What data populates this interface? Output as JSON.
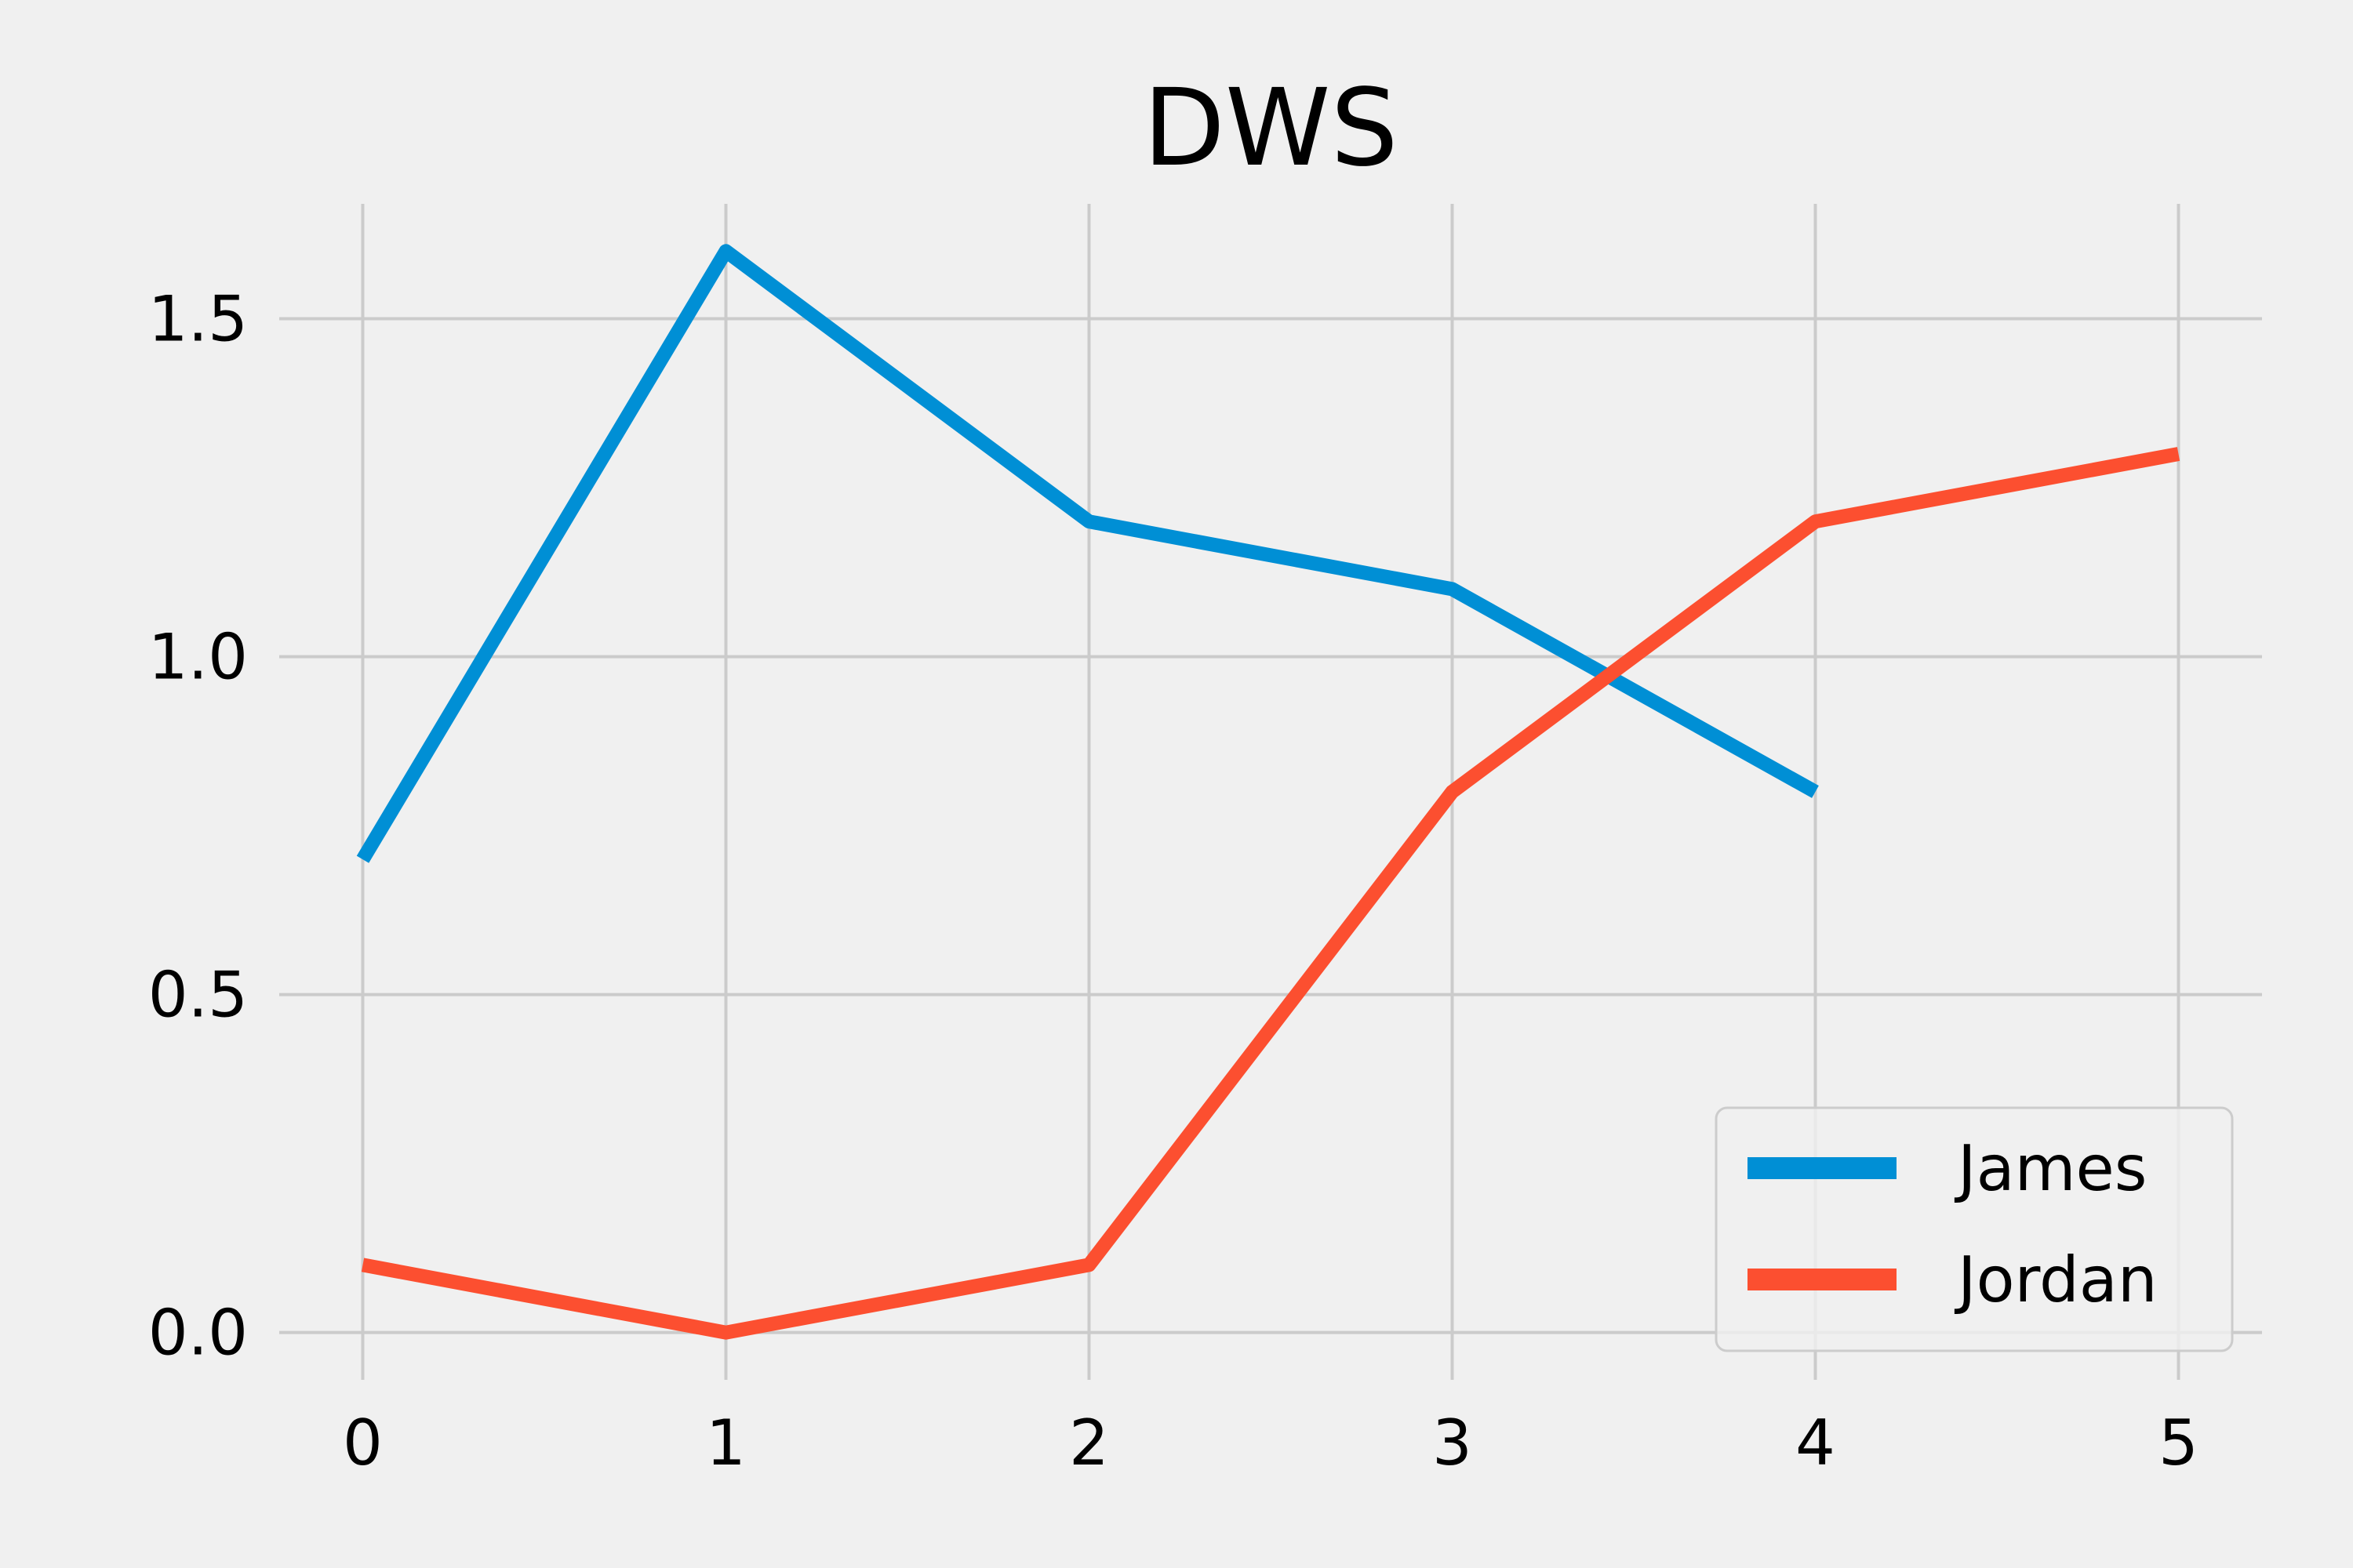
{
  "chart_data": {
    "type": "line",
    "title": "DWS",
    "xlabel": "",
    "ylabel": "",
    "x_ticks": [
      0,
      1,
      2,
      3,
      4,
      5
    ],
    "y_ticks": [
      "0.0",
      "0.5",
      "1.0",
      "1.5"
    ],
    "y_tick_values": [
      0.0,
      0.5,
      1.0,
      1.5
    ],
    "xlim": [
      -0.23,
      5.23
    ],
    "ylim": [
      -0.07,
      1.67
    ],
    "grid": true,
    "legend_position": "lower-right",
    "series": [
      {
        "name": "James",
        "color": "#008fd5",
        "x": [
          0,
          1,
          2,
          3,
          4
        ],
        "y": [
          0.7,
          1.6,
          1.2,
          1.1,
          0.8
        ]
      },
      {
        "name": "Jordan",
        "color": "#fc4f30",
        "x": [
          0,
          1,
          2,
          3,
          4,
          5
        ],
        "y": [
          0.1,
          0.0,
          0.1,
          0.8,
          1.2,
          1.3
        ]
      }
    ]
  }
}
